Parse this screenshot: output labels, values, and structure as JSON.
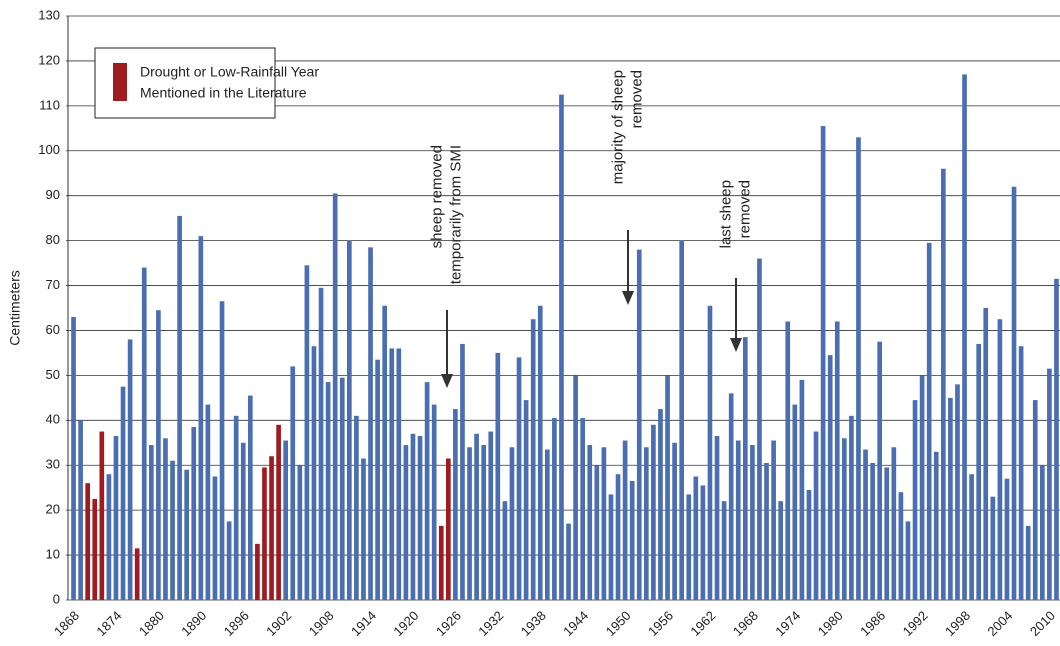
{
  "chart_data": {
    "type": "bar",
    "y_label": "Centimeters",
    "categories": [
      "1868",
      null,
      null,
      null,
      null,
      null,
      "1874",
      null,
      null,
      null,
      null,
      null,
      "1880",
      null,
      null,
      null,
      null,
      null,
      "1890",
      null,
      null,
      null,
      null,
      null,
      "1896",
      null,
      null,
      null,
      null,
      null,
      "1902",
      null,
      null,
      null,
      null,
      null,
      "1908",
      null,
      null,
      null,
      null,
      null,
      "1914",
      null,
      null,
      null,
      null,
      null,
      "1920",
      null,
      null,
      null,
      null,
      null,
      "1926",
      null,
      null,
      null,
      null,
      null,
      "1932",
      null,
      null,
      null,
      null,
      null,
      "1938",
      null,
      null,
      null,
      null,
      null,
      "1944",
      null,
      null,
      null,
      null,
      null,
      "1950",
      null,
      null,
      null,
      null,
      null,
      "1956",
      null,
      null,
      null,
      null,
      null,
      "1962",
      null,
      null,
      null,
      null,
      null,
      "1968",
      null,
      null,
      null,
      null,
      null,
      "1974",
      null,
      null,
      null,
      null,
      null,
      "1980",
      null,
      null,
      null,
      null,
      null,
      "1986",
      null,
      null,
      null,
      null,
      null,
      "1992",
      null,
      null,
      null,
      null,
      null,
      "1998",
      null,
      null,
      null,
      null,
      null,
      "2004",
      null,
      null,
      null,
      null,
      null,
      "2010",
      null
    ],
    "values": [
      63,
      40,
      26,
      22.5,
      37.5,
      28,
      36.5,
      47.5,
      58,
      11.5,
      74,
      34.5,
      64.5,
      36,
      31,
      85.5,
      29,
      38.5,
      81,
      43.5,
      27.5,
      66.5,
      17.5,
      41,
      35,
      45.5,
      12.5,
      29.5,
      32,
      39,
      35.5,
      52,
      30,
      74.5,
      56.5,
      69.5,
      48.5,
      90.5,
      49.5,
      80,
      41,
      31.5,
      78.5,
      53.5,
      65.5,
      56,
      56,
      34.5,
      37,
      36.5,
      48.5,
      43.5,
      16.5,
      31.5,
      42.5,
      57,
      34,
      37,
      34.5,
      37.5,
      55,
      22,
      34,
      54,
      44.5,
      62.5,
      65.5,
      33.5,
      40.5,
      112.5,
      17,
      50,
      40.5,
      34.5,
      30,
      34,
      23.5,
      28,
      35.5,
      26.5,
      78,
      34,
      39,
      42.5,
      50,
      35,
      80,
      23.5,
      27.5,
      25.5,
      65.5,
      36.5,
      22,
      46,
      35.5,
      58.5,
      34.5,
      76,
      30.5,
      35.5,
      22,
      62,
      43.5,
      49,
      24.5,
      37.5,
      105.5,
      54.5,
      62,
      36,
      41,
      103,
      33.5,
      30.5,
      57.5,
      29.5,
      34,
      24,
      17.5,
      44.5,
      50,
      79.5,
      33,
      96,
      45,
      48,
      117,
      28,
      57,
      65,
      23,
      62.5,
      27,
      92,
      56.5,
      16.5,
      44.5,
      30,
      51.5,
      71.5
    ],
    "color": "#4a6eb0",
    "highlight": {
      "name": "Drought or Low-Rainfall Year Mentioned in the Literature",
      "lines": [
        "Drought or Low-Rainfall Year",
        "Mentioned in the Literature"
      ],
      "color": "#9e1b1f",
      "indices": [
        2,
        3,
        4,
        9,
        26,
        27,
        28,
        29,
        52,
        53
      ]
    },
    "ylim": [
      0,
      130
    ],
    "yticks": [
      0,
      10,
      20,
      30,
      40,
      50,
      60,
      70,
      80,
      90,
      100,
      110,
      120,
      130
    ],
    "grid": true,
    "annotations": [
      {
        "lines": [
          "sheep removed",
          "temporarily from SMI"
        ]
      },
      {
        "lines": [
          "majority of sheep",
          "removed"
        ]
      },
      {
        "lines": [
          "last sheep",
          "removed"
        ]
      }
    ]
  }
}
